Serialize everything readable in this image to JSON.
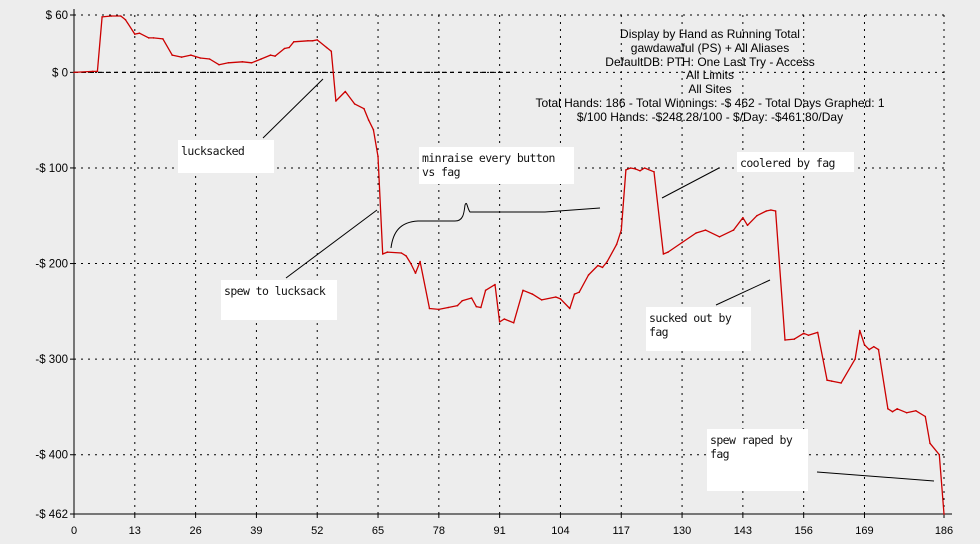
{
  "chart_data": {
    "type": "line",
    "title_lines": [
      "Display by Hand as Running Total",
      "gawdawaful (PS) + All Aliases",
      "DefaultDB: PTH: One Last Try - Access",
      "All Limits",
      "All Sites",
      "Total Hands: 186 - Total Winnings: -$ 462 - Total Days Graphed: 1",
      "$/100 Hands: -$248.28/100 - $/Day: -$461.80/Day"
    ],
    "xlabel": "",
    "ylabel": "",
    "xlim": [
      0,
      186
    ],
    "ylim": [
      -462,
      60
    ],
    "x_ticks": [
      "0",
      "13",
      "26",
      "39",
      "52",
      "65",
      "78",
      "91",
      "104",
      "117",
      "130",
      "143",
      "156",
      "169",
      "186"
    ],
    "y_tick_values": [
      60,
      0,
      -100,
      -200,
      -300,
      -400,
      -462
    ],
    "y_tick_labels": [
      "$ 60",
      "$ 0",
      "-$ 100",
      "-$ 200",
      "-$ 300",
      "-$ 400",
      "-$ 462"
    ],
    "grid": true,
    "line_color": "#cc0000",
    "series": [
      {
        "x": [
          0,
          4,
          5,
          6,
          8,
          10,
          11,
          13,
          14,
          16,
          17,
          19,
          21,
          23,
          25,
          27,
          29,
          31,
          33,
          36,
          38,
          40,
          42,
          43,
          45,
          46,
          47,
          50,
          51,
          52,
          54,
          55,
          56,
          58,
          60,
          62,
          63,
          64,
          65,
          66,
          67,
          70,
          71,
          72,
          73,
          74,
          76,
          78,
          80,
          82,
          83,
          85,
          86,
          87,
          88,
          90,
          91,
          92,
          94,
          96,
          98,
          100,
          103,
          104,
          106,
          107,
          108,
          110,
          112,
          113,
          114,
          116,
          117,
          118,
          119,
          120,
          121,
          122,
          124,
          126,
          127,
          130,
          133,
          135,
          138,
          141,
          143,
          144,
          146,
          148,
          149,
          150,
          152,
          154,
          156,
          157,
          159,
          161,
          162,
          164,
          167,
          168,
          169,
          170,
          171,
          172,
          174,
          175,
          176,
          178,
          180,
          182,
          183,
          185,
          186
        ],
        "y": [
          0,
          1,
          1,
          58,
          59,
          59,
          55,
          40,
          41,
          36,
          36,
          35,
          18,
          16,
          18,
          15,
          14,
          8,
          10,
          11,
          10,
          14,
          18,
          17,
          25,
          26,
          32,
          33,
          33,
          34,
          26,
          22,
          -30,
          -20,
          -33,
          -38,
          -50,
          -60,
          -88,
          -190,
          -188,
          -189,
          -192,
          -200,
          -210,
          -198,
          -247,
          -248,
          -246,
          -244,
          -239,
          -236,
          -245,
          -246,
          -228,
          -222,
          -261,
          -258,
          -262,
          -228,
          -232,
          -238,
          -235,
          -237,
          -247,
          -232,
          -230,
          -212,
          -202,
          -204,
          -198,
          -180,
          -165,
          -102,
          -100,
          -101,
          -103,
          -100,
          -104,
          -190,
          -188,
          -178,
          -168,
          -165,
          -172,
          -165,
          -152,
          -160,
          -150,
          -145,
          -144,
          -145,
          -280,
          -279,
          -273,
          -275,
          -272,
          -322,
          -323,
          -325,
          -300,
          -270,
          -285,
          -290,
          -287,
          -290,
          -352,
          -355,
          -352,
          -356,
          -354,
          -360,
          -388,
          -400,
          -462
        ]
      }
    ],
    "annotations": [
      "lucksacked",
      "spew to lucksack",
      "minraise every button vs fag",
      "coolered by fag",
      "sucked out by fag",
      "spew raped by fag"
    ]
  }
}
